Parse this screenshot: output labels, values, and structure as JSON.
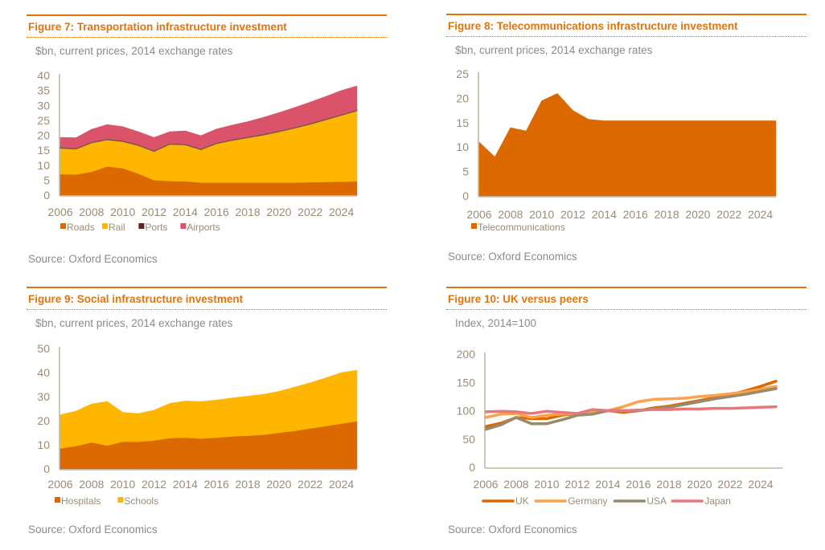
{
  "figures": [
    {
      "title": "Figure 7: Transportation infrastructure investment",
      "subtitle": "$bn, current prices, 2014 exchange rates",
      "source": "Source: Oxford Economics"
    },
    {
      "title": "Figure 8: Telecommunications infrastructure investment",
      "subtitle": "$bn, current prices, 2014 exchange rates",
      "source": "Source: Oxford Economics"
    },
    {
      "title": "Figure 9: Social infrastructure investment",
      "subtitle": "$bn, current prices, 2014 exchange rates",
      "source": "Source: Oxford Economics"
    },
    {
      "title": "Figure 10: UK versus peers",
      "subtitle": "Index, 2014=100",
      "source": "Source: Oxford Economics"
    }
  ],
  "chart_data": [
    {
      "type": "area",
      "stacked": true,
      "title": "Figure 7: Transportation infrastructure investment",
      "ylabel": "$bn, current prices, 2014 exchange rates",
      "xlabel": "",
      "x": [
        2006,
        2007,
        2008,
        2009,
        2010,
        2011,
        2012,
        2013,
        2014,
        2015,
        2016,
        2017,
        2018,
        2019,
        2020,
        2021,
        2022,
        2023,
        2024,
        2025
      ],
      "xticks": [
        "2006",
        "2008",
        "2010",
        "2012",
        "2014",
        "2016",
        "2018",
        "2020",
        "2022",
        "2024"
      ],
      "yticks": [
        "0",
        "5",
        "10",
        "15",
        "20",
        "25",
        "30",
        "35",
        "40"
      ],
      "ylim": [
        0,
        40
      ],
      "legend_position": "bottom",
      "series": [
        {
          "name": "Roads",
          "color": "#dc6900",
          "values": [
            7.0,
            6.9,
            7.8,
            9.6,
            9.0,
            7.2,
            5.0,
            4.7,
            4.6,
            4.2,
            4.2,
            4.2,
            4.2,
            4.2,
            4.2,
            4.2,
            4.3,
            4.4,
            4.5,
            4.6
          ]
        },
        {
          "name": "Rail",
          "color": "#ffb600",
          "values": [
            8.7,
            8.5,
            9.7,
            8.9,
            8.9,
            9.4,
            9.6,
            12.3,
            12.2,
            11.0,
            13.0,
            14.1,
            15.0,
            15.9,
            17.0,
            18.2,
            19.4,
            20.8,
            22.2,
            23.6
          ]
        },
        {
          "name": "Ports",
          "color": "#602320",
          "values": [
            0.3,
            0.3,
            0.3,
            0.3,
            0.3,
            0.3,
            0.3,
            0.3,
            0.3,
            0.3,
            0.3,
            0.3,
            0.3,
            0.3,
            0.3,
            0.3,
            0.3,
            0.3,
            0.3,
            0.3
          ]
        },
        {
          "name": "Airports",
          "color": "#db536a",
          "values": [
            3.3,
            3.5,
            4.2,
            4.8,
            4.7,
            4.3,
            4.4,
            3.9,
            4.4,
            4.4,
            4.6,
            4.8,
            5.1,
            5.6,
            6.1,
            6.6,
            7.1,
            7.5,
            8.0,
            8.0
          ]
        }
      ]
    },
    {
      "type": "area",
      "stacked": false,
      "title": "Figure 8: Telecommunications infrastructure investment",
      "ylabel": "$bn, current prices, 2014 exchange rates",
      "xlabel": "",
      "x": [
        2006,
        2007,
        2008,
        2009,
        2010,
        2011,
        2012,
        2013,
        2014,
        2015,
        2016,
        2017,
        2018,
        2019,
        2020,
        2021,
        2022,
        2023,
        2024,
        2025
      ],
      "xticks": [
        "2006",
        "2008",
        "2010",
        "2012",
        "2014",
        "2016",
        "2018",
        "2020",
        "2022",
        "2024"
      ],
      "yticks": [
        "0",
        "5",
        "10",
        "15",
        "20",
        "25"
      ],
      "ylim": [
        0,
        25
      ],
      "legend_position": "bottom",
      "series": [
        {
          "name": "Telecommunications",
          "color": "#dc6900",
          "values": [
            11.0,
            8.0,
            14.0,
            13.3,
            19.5,
            21.0,
            17.5,
            15.7,
            15.4,
            15.4,
            15.4,
            15.4,
            15.4,
            15.4,
            15.4,
            15.4,
            15.4,
            15.4,
            15.4,
            15.4
          ]
        }
      ]
    },
    {
      "type": "area",
      "stacked": true,
      "title": "Figure 9: Social infrastructure investment",
      "ylabel": "$bn, current prices, 2014 exchange rates",
      "xlabel": "",
      "x": [
        2006,
        2007,
        2008,
        2009,
        2010,
        2011,
        2012,
        2013,
        2014,
        2015,
        2016,
        2017,
        2018,
        2019,
        2020,
        2021,
        2022,
        2023,
        2024,
        2025
      ],
      "xticks": [
        "2006",
        "2008",
        "2010",
        "2012",
        "2014",
        "2016",
        "2018",
        "2020",
        "2022",
        "2024"
      ],
      "yticks": [
        "0",
        "10",
        "20",
        "30",
        "40",
        "50"
      ],
      "ylim": [
        0,
        50
      ],
      "legend_position": "bottom",
      "series": [
        {
          "name": "Hospitals",
          "color": "#dc6900",
          "values": [
            8.5,
            9.5,
            11.0,
            9.7,
            11.3,
            11.3,
            11.8,
            12.8,
            13.0,
            12.6,
            13.0,
            13.5,
            13.8,
            14.2,
            15.0,
            15.8,
            16.8,
            17.8,
            18.8,
            19.8
          ]
        },
        {
          "name": "Schools",
          "color": "#ffb600",
          "values": [
            14.0,
            14.5,
            16.0,
            18.3,
            12.2,
            11.7,
            12.6,
            14.4,
            15.2,
            15.4,
            15.6,
            16.0,
            16.4,
            16.8,
            17.2,
            18.2,
            19.0,
            20.0,
            21.2,
            21.2
          ]
        }
      ]
    },
    {
      "type": "line",
      "title": "Figure 10: UK versus peers",
      "ylabel": "Index, 2014=100",
      "xlabel": "",
      "x": [
        2006,
        2007,
        2008,
        2009,
        2010,
        2011,
        2012,
        2013,
        2014,
        2015,
        2016,
        2017,
        2018,
        2019,
        2020,
        2021,
        2022,
        2023,
        2024,
        2025
      ],
      "xticks": [
        "2006",
        "2008",
        "2010",
        "2012",
        "2014",
        "2016",
        "2018",
        "2020",
        "2022",
        "2024"
      ],
      "yticks": [
        "0",
        "50",
        "100",
        "150",
        "200"
      ],
      "ylim": [
        0,
        200
      ],
      "legend_position": "bottom",
      "series": [
        {
          "name": "UK",
          "color": "#dc6900",
          "values": [
            72,
            78,
            88,
            86,
            86,
            92,
            95,
            97,
            100,
            97,
            100,
            105,
            108,
            113,
            118,
            123,
            128,
            135,
            143,
            152
          ]
        },
        {
          "name": "Germany",
          "color": "#ffa04a",
          "values": [
            88,
            94,
            95,
            88,
            92,
            94,
            95,
            98,
            100,
            107,
            116,
            120,
            121,
            122,
            125,
            127,
            130,
            133,
            138,
            143
          ]
        },
        {
          "name": "USA",
          "color": "#968c6d",
          "values": [
            67,
            75,
            88,
            77,
            77,
            84,
            92,
            94,
            100,
            100,
            100,
            103,
            106,
            111,
            116,
            121,
            125,
            129,
            134,
            139
          ]
        },
        {
          "name": "Japan",
          "color": "#e8777a",
          "values": [
            98,
            99,
            98,
            95,
            99,
            97,
            95,
            102,
            100,
            100,
            101,
            102,
            102,
            103,
            103,
            104,
            104,
            105,
            106,
            107
          ]
        }
      ]
    }
  ]
}
